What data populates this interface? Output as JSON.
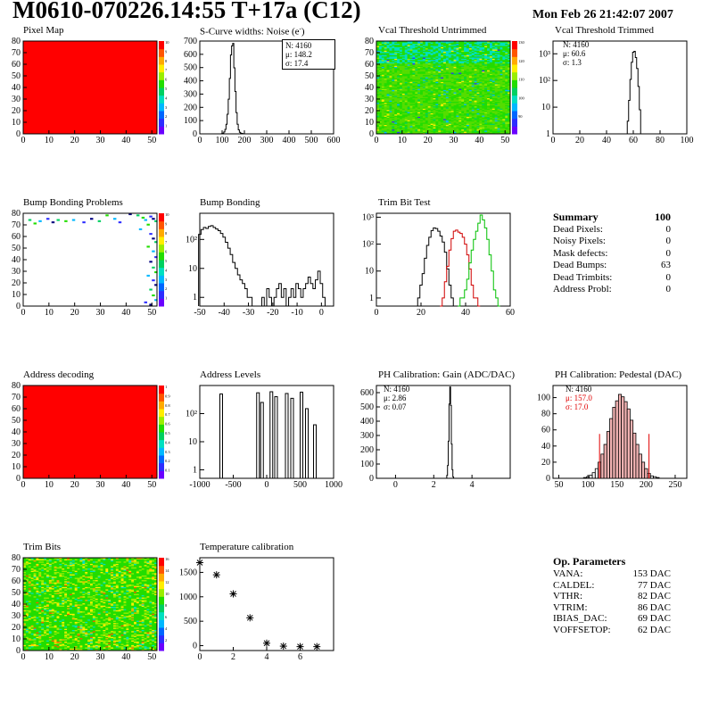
{
  "header": {
    "title": "M0610-070226.14:55 T+17a (C12)",
    "date": "Mon Feb 26 21:42:07 2007"
  },
  "colors": {
    "red": "#ff0000",
    "pedestal_fill": "#f4b4b4"
  },
  "chart_data": [
    {
      "id": "pixel_map",
      "type": "heatmap",
      "title": "Pixel Map",
      "xlim": [
        0,
        52
      ],
      "ylim": [
        0,
        80
      ],
      "fill": "uniform-red",
      "xticks": [
        "0",
        "10",
        "20",
        "30",
        "40",
        "50"
      ],
      "yticks": [
        "0",
        "10",
        "20",
        "30",
        "40",
        "50",
        "60",
        "70",
        "80"
      ],
      "palette_ticks": [
        "1",
        "2",
        "3",
        "4",
        "5",
        "6",
        "7",
        "8",
        "9",
        "10"
      ]
    },
    {
      "id": "scurve_widths",
      "type": "bar",
      "title": "S-Curve widths: Noise (e",
      "title_sup": "-",
      "title_end": ")",
      "xlim": [
        0,
        600
      ],
      "ylim": [
        0,
        700
      ],
      "xticks": [
        "0",
        "100",
        "200",
        "300",
        "400",
        "500",
        "600"
      ],
      "yticks": [
        "0",
        "100",
        "200",
        "300",
        "400",
        "500",
        "600",
        "700"
      ],
      "stats": [
        "N: 4160",
        "μ: 148.2",
        "σ: 17.4"
      ],
      "x": [
        100,
        105,
        110,
        115,
        120,
        125,
        130,
        135,
        140,
        145,
        150,
        155,
        160,
        165,
        170,
        175,
        180,
        185,
        190,
        195,
        200
      ],
      "y": [
        2,
        5,
        14,
        34,
        72,
        148,
        262,
        418,
        595,
        664,
        682,
        498,
        320,
        160,
        72,
        30,
        12,
        5,
        3,
        1,
        0
      ]
    },
    {
      "id": "vcal_untrimmed",
      "type": "heatmap",
      "title": "Vcal Threshold Untrimmed",
      "xlim": [
        0,
        52
      ],
      "ylim": [
        0,
        80
      ],
      "fill": "noise-green",
      "xticks": [
        "0",
        "10",
        "20",
        "30",
        "40",
        "50"
      ],
      "yticks": [
        "0",
        "10",
        "20",
        "30",
        "40",
        "50",
        "60",
        "70",
        "80"
      ],
      "palette_ticks": [
        "90",
        "100",
        "110",
        "120",
        "130"
      ]
    },
    {
      "id": "vcal_trimmed",
      "type": "bar",
      "title": "Vcal Threshold Trimmed",
      "xlim": [
        0,
        100
      ],
      "log": true,
      "ylim": [
        1,
        3000
      ],
      "xticks": [
        "0",
        "20",
        "40",
        "60",
        "80",
        "100"
      ],
      "yticks": [
        "1",
        "10",
        "10²",
        "10³"
      ],
      "stats": [
        "N: 4160",
        "μ: 60.6",
        "σ: 1.3"
      ],
      "x": [
        55,
        56,
        57,
        58,
        59,
        60,
        61,
        62,
        63,
        64,
        65,
        66
      ],
      "y": [
        1,
        3,
        18,
        110,
        480,
        1150,
        1240,
        720,
        280,
        60,
        8,
        1
      ]
    },
    {
      "id": "bump_problems",
      "type": "heatmap",
      "title": "Bump Bonding Problems",
      "xlim": [
        0,
        52
      ],
      "ylim": [
        0,
        80
      ],
      "fill": "sparse",
      "xticks": [
        "0",
        "10",
        "20",
        "30",
        "40",
        "50"
      ],
      "yticks": [
        "0",
        "10",
        "20",
        "30",
        "40",
        "50",
        "60",
        "70",
        "80"
      ],
      "palette_ticks": [
        "1",
        "2",
        "3",
        "4",
        "5",
        "6",
        "7",
        "8",
        "9",
        "10"
      ],
      "points": [
        [
          2,
          74
        ],
        [
          4,
          71
        ],
        [
          6,
          73
        ],
        [
          9,
          75
        ],
        [
          11,
          72
        ],
        [
          13,
          74
        ],
        [
          16,
          73
        ],
        [
          19,
          74
        ],
        [
          23,
          72
        ],
        [
          26,
          75
        ],
        [
          29,
          73
        ],
        [
          32,
          78
        ],
        [
          35,
          75
        ],
        [
          37,
          72
        ],
        [
          41,
          79
        ],
        [
          44,
          78
        ],
        [
          46,
          76
        ],
        [
          47,
          74
        ],
        [
          49,
          77
        ],
        [
          50,
          75
        ],
        [
          51,
          73
        ],
        [
          48,
          70
        ],
        [
          45,
          66
        ],
        [
          49,
          62
        ],
        [
          50,
          58
        ],
        [
          51,
          55
        ],
        [
          48,
          51
        ],
        [
          50,
          47
        ],
        [
          51,
          42
        ],
        [
          49,
          38
        ],
        [
          50,
          33
        ],
        [
          51,
          29
        ],
        [
          48,
          26
        ],
        [
          50,
          22
        ],
        [
          51,
          18
        ],
        [
          49,
          14
        ],
        [
          50,
          9
        ],
        [
          51,
          5
        ],
        [
          47,
          3
        ],
        [
          49,
          1
        ]
      ]
    },
    {
      "id": "bump_bonding",
      "type": "bar",
      "title": "Bump Bonding",
      "xlim": [
        -50,
        5
      ],
      "log": true,
      "ylim": [
        0.5,
        800
      ],
      "xticks": [
        "-50",
        "-40",
        "-30",
        "-20",
        "-10",
        "0"
      ],
      "yticks": [
        "1",
        "10",
        "10²"
      ],
      "x": [
        -50,
        -49,
        -48,
        -47,
        -46,
        -45,
        -44,
        -43,
        -42,
        -41,
        -40,
        -39,
        -38,
        -37,
        -36,
        -35,
        -34,
        -33,
        -32,
        -31,
        -30,
        -29,
        -28,
        -27,
        -26,
        -25,
        -24,
        -23,
        -22,
        -21,
        -20,
        -19,
        -18,
        -17,
        -16,
        -15,
        -14,
        -13,
        -12,
        -11,
        -10,
        -9,
        -8,
        -7,
        -6,
        -5,
        -4,
        -3,
        -2,
        -1,
        0,
        1
      ],
      "y": [
        150,
        220,
        260,
        240,
        280,
        300,
        260,
        230,
        200,
        160,
        120,
        80,
        50,
        30,
        16,
        10,
        6,
        4,
        3,
        2,
        1,
        1,
        0,
        0,
        0,
        0,
        1,
        0,
        2,
        1,
        0,
        1,
        2,
        3,
        1,
        2,
        0,
        1,
        2,
        1,
        3,
        2,
        1,
        2,
        3,
        5,
        3,
        2,
        4,
        8,
        3,
        1
      ]
    },
    {
      "id": "trim_bit_test",
      "type": "line",
      "title": "Trim Bit Test",
      "xlim": [
        0,
        60
      ],
      "log": true,
      "ylim": [
        0.5,
        1400
      ],
      "xticks": [
        "0",
        "20",
        "40",
        "60"
      ],
      "yticks": [
        "1",
        "10",
        "10²",
        "10³"
      ],
      "series": [
        {
          "color": "#000000",
          "x": [
            18,
            19,
            20,
            21,
            22,
            23,
            24,
            25,
            26,
            27,
            28,
            29,
            30,
            31,
            32,
            33,
            34,
            35
          ],
          "y": [
            0,
            1,
            3,
            8,
            30,
            90,
            180,
            320,
            400,
            380,
            300,
            200,
            120,
            50,
            12,
            3,
            1,
            0
          ]
        },
        {
          "color": "#d00000",
          "x": [
            29,
            30,
            31,
            32,
            33,
            34,
            35,
            36,
            37,
            38,
            39,
            40,
            41,
            42,
            43,
            44,
            45,
            46
          ],
          "y": [
            0,
            1,
            4,
            15,
            60,
            160,
            300,
            330,
            280,
            250,
            180,
            100,
            40,
            12,
            3,
            1,
            1,
            0
          ]
        },
        {
          "color": "#00c000",
          "x": [
            37,
            38,
            39,
            40,
            41,
            42,
            43,
            44,
            45,
            46,
            47,
            48,
            49,
            50,
            51,
            52,
            53,
            54,
            55
          ],
          "y": [
            0,
            1,
            1,
            2,
            5,
            20,
            60,
            150,
            300,
            600,
            1200,
            800,
            400,
            150,
            40,
            10,
            2,
            1,
            0
          ]
        }
      ]
    },
    {
      "id": "address_decoding",
      "type": "heatmap",
      "title": "Address decoding",
      "xlim": [
        0,
        52
      ],
      "ylim": [
        0,
        80
      ],
      "fill": "uniform-red",
      "xticks": [
        "0",
        "10",
        "20",
        "30",
        "40",
        "50"
      ],
      "yticks": [
        "0",
        "10",
        "20",
        "30",
        "40",
        "50",
        "60",
        "70",
        "80"
      ],
      "palette_ticks": [
        "0.1",
        "0.2",
        "0.3",
        "0.4",
        "0.5",
        "0.6",
        "0.7",
        "0.8",
        "0.9",
        "1"
      ]
    },
    {
      "id": "address_levels",
      "type": "bar",
      "title": "Address Levels",
      "xlim": [
        -1000,
        1000
      ],
      "log": true,
      "ylim": [
        0.5,
        1000
      ],
      "xticks": [
        "-1000",
        "-500",
        "0",
        "500",
        "1000"
      ],
      "yticks": [
        "1",
        "10",
        "10²"
      ],
      "x": [
        -680,
        -130,
        -70,
        70,
        140,
        300,
        380,
        520,
        600,
        720
      ],
      "y": [
        500,
        550,
        250,
        600,
        400,
        520,
        350,
        580,
        150,
        40
      ]
    },
    {
      "id": "ph_gain",
      "type": "bar",
      "title": "PH Calibration: Gain (ADC/DAC)",
      "xlim": [
        -1,
        6
      ],
      "ylim": [
        0,
        650
      ],
      "xticks": [
        "0",
        "2",
        "4"
      ],
      "yticks": [
        "0",
        "100",
        "200",
        "300",
        "400",
        "500",
        "600"
      ],
      "stats": [
        "N: 4160",
        "μ: 2.86",
        "σ: 0.07"
      ],
      "x": [
        2.7,
        2.74,
        2.78,
        2.82,
        2.86,
        2.9,
        2.94,
        2.98,
        3.02
      ],
      "y": [
        20,
        90,
        260,
        520,
        640,
        510,
        240,
        60,
        10
      ]
    },
    {
      "id": "ph_pedestal",
      "type": "bar",
      "title": "PH Calibration: Pedestal (DAC)",
      "xlim": [
        40,
        270
      ],
      "ylim": [
        0,
        115
      ],
      "xticks": [
        "50",
        "100",
        "150",
        "200",
        "250"
      ],
      "yticks": [
        "0",
        "20",
        "40",
        "60",
        "80",
        "100"
      ],
      "stats": [
        "N: 4160",
        "μ: 157.0",
        "σ: 17.0"
      ],
      "fit_window": [
        120,
        205
      ],
      "x": [
        95,
        100,
        105,
        110,
        115,
        120,
        125,
        130,
        135,
        140,
        145,
        150,
        155,
        160,
        165,
        170,
        175,
        180,
        185,
        190,
        195,
        200,
        205,
        210,
        215,
        220
      ],
      "y": [
        1,
        2,
        4,
        7,
        12,
        20,
        30,
        42,
        58,
        74,
        88,
        96,
        104,
        101,
        95,
        86,
        72,
        56,
        42,
        30,
        20,
        12,
        6,
        3,
        2,
        1
      ]
    },
    {
      "id": "trim_bits",
      "type": "heatmap",
      "title": "Trim Bits",
      "xlim": [
        0,
        52
      ],
      "ylim": [
        0,
        80
      ],
      "fill": "noise-trim",
      "xticks": [
        "0",
        "10",
        "20",
        "30",
        "40",
        "50"
      ],
      "yticks": [
        "0",
        "10",
        "20",
        "30",
        "40",
        "50",
        "60",
        "70",
        "80"
      ],
      "palette_ticks": [
        "2",
        "4",
        "6",
        "8",
        "10",
        "12",
        "14",
        "16"
      ]
    },
    {
      "id": "temperature_calibration",
      "type": "scatter",
      "title": "Temperature calibration",
      "xlim": [
        0,
        8
      ],
      "ylim": [
        -100,
        1800
      ],
      "xticks": [
        "0",
        "2",
        "4",
        "6"
      ],
      "yticks": [
        "0",
        "500",
        "1000",
        "1500"
      ],
      "x": [
        0,
        1,
        2,
        3,
        4,
        5,
        6,
        7
      ],
      "y": [
        1700,
        1450,
        1060,
        570,
        50,
        -10,
        -20,
        -20
      ]
    }
  ],
  "summary": {
    "title": "Summary",
    "total": "100",
    "rows": [
      {
        "label": "Dead Pixels:",
        "value": "0"
      },
      {
        "label": "Noisy Pixels:",
        "value": "0"
      },
      {
        "label": "Mask defects:",
        "value": "0"
      },
      {
        "label": "Dead Bumps:",
        "value": "63"
      },
      {
        "label": "Dead Trimbits:",
        "value": "0"
      },
      {
        "label": "Address Probl:",
        "value": "0"
      }
    ]
  },
  "op_parameters": {
    "title": "Op. Parameters",
    "rows": [
      {
        "label": "VANA:",
        "value": "153 DAC"
      },
      {
        "label": "CALDEL:",
        "value": "77 DAC"
      },
      {
        "label": "VTHR:",
        "value": "82 DAC"
      },
      {
        "label": "VTRIM:",
        "value": "86 DAC"
      },
      {
        "label": "IBIAS_DAC:",
        "value": "69 DAC"
      },
      {
        "label": "VOFFSETOP:",
        "value": "62 DAC"
      }
    ]
  }
}
